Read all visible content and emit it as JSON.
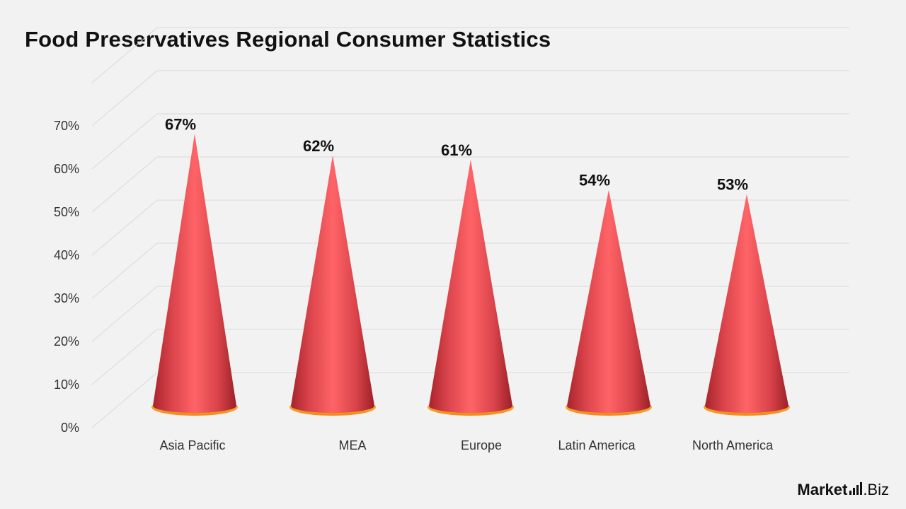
{
  "chart_data": {
    "type": "bar",
    "title": "Food Preservatives Regional Consumer Statistics",
    "xlabel": "",
    "ylabel": "",
    "categories": [
      "Asia Pacific",
      "MEA",
      "Europe",
      "Latin America",
      "North America"
    ],
    "values": [
      67,
      62,
      61,
      54,
      53
    ],
    "value_labels": [
      "67%",
      "62%",
      "61%",
      "54%",
      "53%"
    ],
    "ylim": [
      0,
      70
    ],
    "yticks": [
      0,
      10,
      20,
      30,
      40,
      50,
      60,
      70
    ],
    "ytick_labels": [
      "0%",
      "10%",
      "20%",
      "30%",
      "40%",
      "50%",
      "60%",
      "70%"
    ],
    "grid": true,
    "bar_shape": "cone",
    "colors": {
      "cone": "#e8474c",
      "base_rim": "#f5a623",
      "grid": "#d9d9d9"
    }
  },
  "logo": {
    "text_bold": "Market",
    "text_tail": ".Biz"
  }
}
